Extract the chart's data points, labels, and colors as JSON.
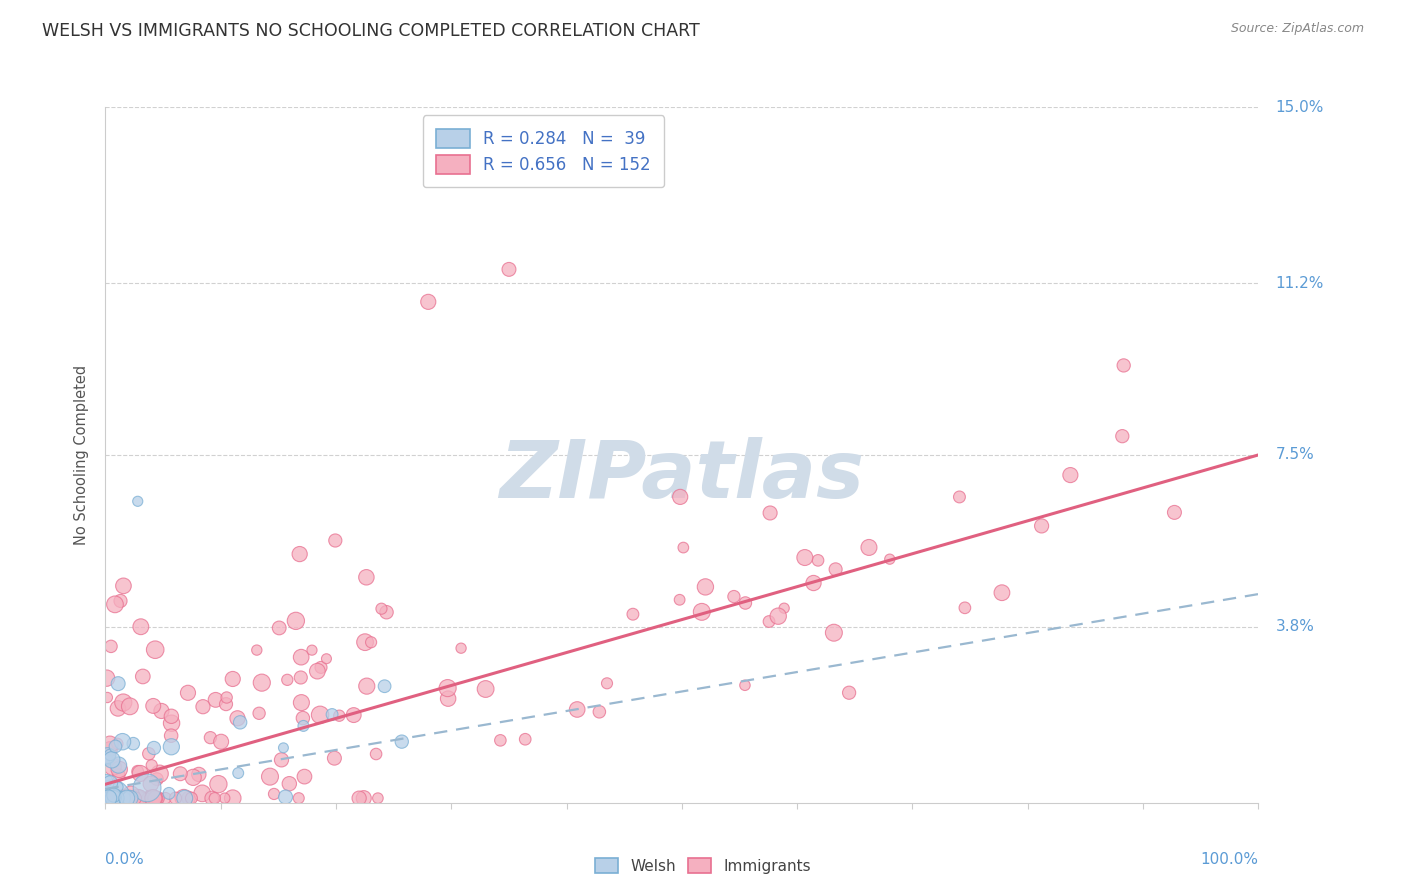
{
  "title": "WELSH VS IMMIGRANTS NO SCHOOLING COMPLETED CORRELATION CHART",
  "source": "Source: ZipAtlas.com",
  "ylabel": "No Schooling Completed",
  "xlim": [
    0,
    1.0
  ],
  "ylim": [
    0,
    0.15
  ],
  "yticks": [
    0,
    0.038,
    0.075,
    0.112,
    0.15
  ],
  "ytick_labels": [
    "",
    "3.8%",
    "7.5%",
    "11.2%",
    "15.0%"
  ],
  "welsh_R": 0.284,
  "welsh_N": 39,
  "immigrants_R": 0.656,
  "immigrants_N": 152,
  "welsh_color": "#b8d0e8",
  "welsh_edge_color": "#7aafd4",
  "immigrants_color": "#f5b0c0",
  "immigrants_edge_color": "#e87090",
  "welsh_line_color": "#8ab4d8",
  "immigrants_line_color": "#e06080",
  "background_color": "#ffffff",
  "title_color": "#333333",
  "axis_label_color": "#5b9bd5",
  "legend_R_color": "#4472c4",
  "watermark_color": "#d0dce8",
  "welsh_trend_intercept": 0.003,
  "welsh_trend_slope": 0.042,
  "immigrants_trend_intercept": 0.004,
  "immigrants_trend_slope": 0.071
}
